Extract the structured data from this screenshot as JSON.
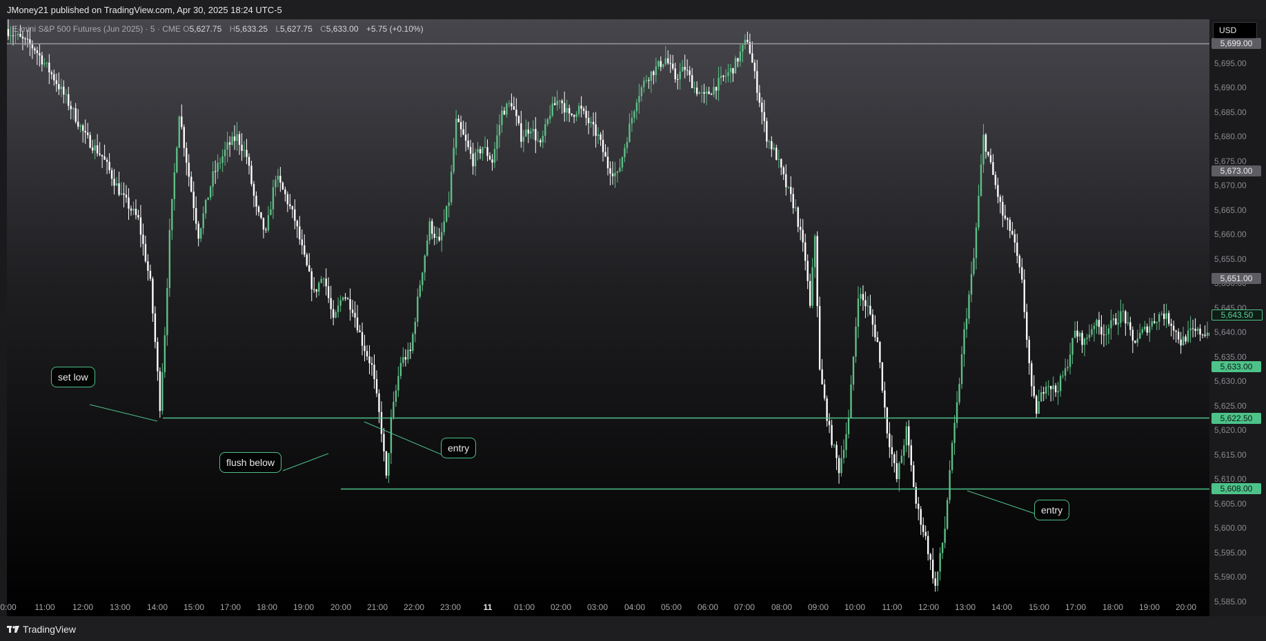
{
  "header": {
    "published_text": "JMoney21 published on TradingView.com, Apr 30, 2025 18:24 UTC-5"
  },
  "symbol": {
    "name": "E-mini S&P 500 Futures (Jun 2025) · 5 · CME",
    "open_label": "O",
    "open": "5,627.75",
    "high_label": "H",
    "high": "5,633.25",
    "low_label": "L",
    "low": "5,627.75",
    "close_label": "C",
    "close": "5,633.00",
    "change": "+5.75 (+0.10%)"
  },
  "currency_button": "USD",
  "footer": {
    "brand": "TradingView"
  },
  "colors": {
    "up": "#5fbf86",
    "down": "#ffffff",
    "accent": "#4dc38a",
    "label_gray": "#5d5d63"
  },
  "chart_data": {
    "type": "candlestick",
    "interval": "5",
    "ylim": [
      5582,
      5704
    ],
    "price_ticks": [
      "5,695.00",
      "5,690.00",
      "5,685.00",
      "5,680.00",
      "5,675.00",
      "5,670.00",
      "5,665.00",
      "5,660.00",
      "5,655.00",
      "5,650.00",
      "5,645.00",
      "5,640.00",
      "5,635.00",
      "5,630.00",
      "5,625.00",
      "5,620.00",
      "5,615.00",
      "5,610.00",
      "5,605.00",
      "5,600.00",
      "5,595.00",
      "5,590.00",
      "5,585.00"
    ],
    "price_labels": [
      {
        "value": "5,699.00",
        "style": "gray"
      },
      {
        "value": "5,673.00",
        "style": "gray"
      },
      {
        "value": "5,651.00",
        "style": "gray"
      },
      {
        "value": "5,643.50",
        "style": "outline"
      },
      {
        "value": "5,633.00",
        "style": "green"
      },
      {
        "value": "5,622.50",
        "style": "green"
      },
      {
        "value": "5,608.00",
        "style": "green"
      }
    ],
    "time_ticks": [
      "0:00",
      "11:00",
      "12:00",
      "13:00",
      "14:00",
      "15:00",
      "17:00",
      "18:00",
      "19:00",
      "20:00",
      "21:00",
      "22:00",
      "23:00",
      "11",
      "01:00",
      "02:00",
      "03:00",
      "04:00",
      "05:00",
      "06:00",
      "07:00",
      "08:00",
      "09:00",
      "10:00",
      "11:00",
      "12:00",
      "13:00",
      "14:00",
      "15:00",
      "17:00",
      "18:00",
      "19:00",
      "20:00"
    ],
    "horizontal_lines": [
      {
        "price": 5699.0,
        "from": "start",
        "color": "gray"
      },
      {
        "price": 5622.5,
        "from": "14:00",
        "color": "green"
      },
      {
        "price": 5608.0,
        "from": "20:00",
        "color": "green"
      }
    ],
    "annotations": [
      {
        "text": "set low"
      },
      {
        "text": "flush below"
      },
      {
        "text": "entry"
      },
      {
        "text": "entry"
      }
    ],
    "path": [
      [
        0,
        5702
      ],
      [
        12,
        5698
      ],
      [
        20,
        5692
      ],
      [
        27,
        5686
      ],
      [
        33,
        5680
      ],
      [
        40,
        5676
      ],
      [
        48,
        5668
      ],
      [
        55,
        5663
      ],
      [
        60,
        5650
      ],
      [
        62,
        5638
      ],
      [
        64,
        5625
      ],
      [
        66,
        5640
      ],
      [
        68,
        5660
      ],
      [
        72,
        5685
      ],
      [
        76,
        5672
      ],
      [
        80,
        5660
      ],
      [
        86,
        5672
      ],
      [
        92,
        5678
      ],
      [
        96,
        5680
      ],
      [
        100,
        5676
      ],
      [
        104,
        5665
      ],
      [
        108,
        5660
      ],
      [
        112,
        5672
      ],
      [
        116,
        5668
      ],
      [
        120,
        5663
      ],
      [
        124,
        5655
      ],
      [
        128,
        5648
      ],
      [
        132,
        5652
      ],
      [
        136,
        5642
      ],
      [
        140,
        5648
      ],
      [
        144,
        5645
      ],
      [
        148,
        5638
      ],
      [
        152,
        5633
      ],
      [
        156,
        5620
      ],
      [
        158,
        5610
      ],
      [
        160,
        5622
      ],
      [
        164,
        5634
      ],
      [
        168,
        5636
      ],
      [
        172,
        5650
      ],
      [
        176,
        5662
      ],
      [
        180,
        5658
      ],
      [
        184,
        5667
      ],
      [
        187,
        5683
      ],
      [
        190,
        5680
      ],
      [
        194,
        5675
      ],
      [
        198,
        5678
      ],
      [
        202,
        5675
      ],
      [
        206,
        5685
      ],
      [
        210,
        5687
      ],
      [
        214,
        5680
      ],
      [
        218,
        5682
      ],
      [
        222,
        5678
      ],
      [
        226,
        5685
      ],
      [
        230,
        5688
      ],
      [
        234,
        5684
      ],
      [
        238,
        5686
      ],
      [
        242,
        5683
      ],
      [
        246,
        5680
      ],
      [
        250,
        5674
      ],
      [
        254,
        5672
      ],
      [
        258,
        5680
      ],
      [
        262,
        5688
      ],
      [
        266,
        5692
      ],
      [
        270,
        5694
      ],
      [
        274,
        5696
      ],
      [
        278,
        5692
      ],
      [
        282,
        5694
      ],
      [
        286,
        5690
      ],
      [
        290,
        5688
      ],
      [
        294,
        5690
      ],
      [
        298,
        5692
      ],
      [
        302,
        5694
      ],
      [
        306,
        5698
      ],
      [
        308,
        5700
      ],
      [
        312,
        5690
      ],
      [
        316,
        5680
      ],
      [
        320,
        5676
      ],
      [
        324,
        5670
      ],
      [
        328,
        5665
      ],
      [
        332,
        5655
      ],
      [
        334,
        5645
      ],
      [
        336,
        5660
      ],
      [
        338,
        5632
      ],
      [
        342,
        5620
      ],
      [
        346,
        5612
      ],
      [
        350,
        5622
      ],
      [
        354,
        5648
      ],
      [
        358,
        5645
      ],
      [
        362,
        5638
      ],
      [
        366,
        5620
      ],
      [
        370,
        5610
      ],
      [
        374,
        5620
      ],
      [
        378,
        5605
      ],
      [
        382,
        5598
      ],
      [
        386,
        5588
      ],
      [
        390,
        5600
      ],
      [
        392,
        5612
      ],
      [
        395,
        5625
      ],
      [
        398,
        5640
      ],
      [
        402,
        5655
      ],
      [
        406,
        5680
      ],
      [
        410,
        5672
      ],
      [
        414,
        5664
      ],
      [
        418,
        5660
      ],
      [
        422,
        5650
      ],
      [
        426,
        5628
      ],
      [
        428,
        5624
      ],
      [
        432,
        5630
      ],
      [
        436,
        5628
      ],
      [
        440,
        5632
      ],
      [
        444,
        5640
      ],
      [
        448,
        5638
      ],
      [
        452,
        5642
      ],
      [
        456,
        5640
      ],
      [
        460,
        5642
      ],
      [
        464,
        5644
      ],
      [
        468,
        5638
      ],
      [
        472,
        5640
      ],
      [
        476,
        5642
      ],
      [
        480,
        5644
      ],
      [
        484,
        5642
      ],
      [
        488,
        5638
      ],
      [
        492,
        5640
      ]
    ]
  }
}
